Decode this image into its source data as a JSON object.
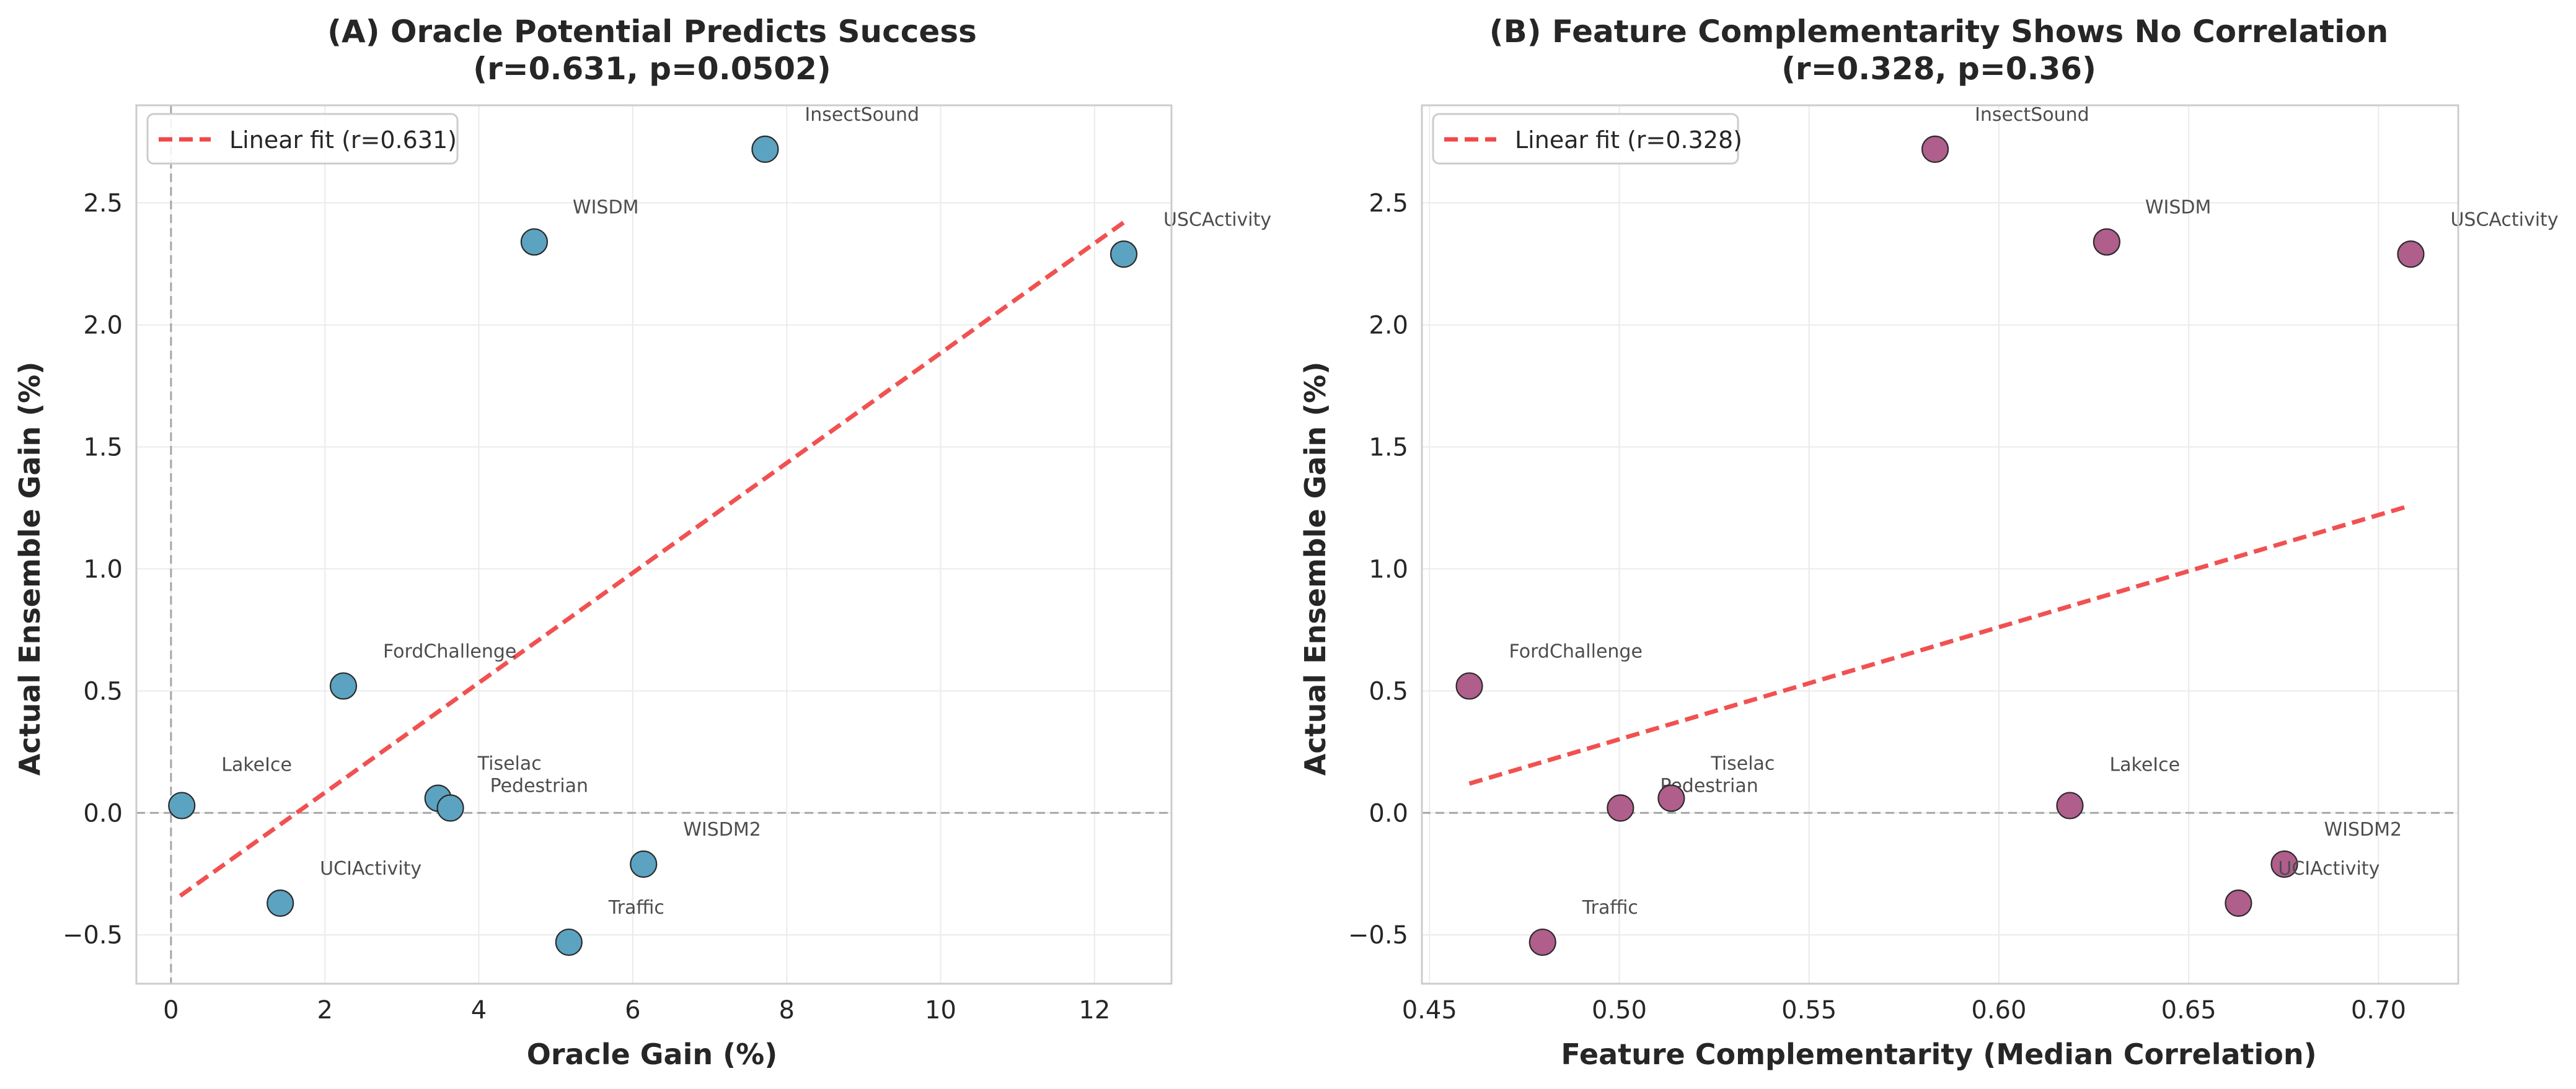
{
  "chart_data": [
    {
      "type": "scatter",
      "title_line1": "(A) Oracle Potential Predicts Success",
      "title_line2": "(r=0.631, p=0.0502)",
      "xlabel": "Oracle Gain (%)",
      "ylabel": "Actual Ensemble Gain (%)",
      "xlim": [
        -0.45,
        13.0
      ],
      "ylim": [
        -0.7,
        2.9
      ],
      "xticks": [
        0,
        2,
        4,
        6,
        8,
        10,
        12
      ],
      "xtick_labels": [
        "0",
        "2",
        "4",
        "6",
        "8",
        "10",
        "12"
      ],
      "yticks": [
        -0.5,
        0.0,
        0.5,
        1.0,
        1.5,
        2.0,
        2.5
      ],
      "ytick_labels": [
        "−0.5",
        "0.0",
        "0.5",
        "1.0",
        "1.5",
        "2.0",
        "2.5"
      ],
      "grid": true,
      "vline_x": 0,
      "hline_y": 0,
      "point_color": "#5ba3c1",
      "fit_color": "#f04848",
      "legend_label": "Linear fit (r=0.631)",
      "legend_position": "top-left",
      "fit_line": {
        "x": [
          0.12,
          12.38
        ],
        "y": [
          -0.34,
          2.42
        ]
      },
      "points": [
        {
          "label": "InsectSound",
          "x": 7.72,
          "y": 2.72
        },
        {
          "label": "WISDM",
          "x": 4.72,
          "y": 2.34
        },
        {
          "label": "USCActivity",
          "x": 12.38,
          "y": 2.29
        },
        {
          "label": "FordChallenge",
          "x": 2.24,
          "y": 0.52
        },
        {
          "label": "LakeIce",
          "x": 0.14,
          "y": 0.03
        },
        {
          "label": "Tiselac",
          "x": 3.47,
          "y": 0.06
        },
        {
          "label": "Pedestrian",
          "x": 3.63,
          "y": 0.02
        },
        {
          "label": "WISDM2",
          "x": 6.14,
          "y": -0.21
        },
        {
          "label": "UCIActivity",
          "x": 1.42,
          "y": -0.37
        },
        {
          "label": "Traffic",
          "x": 5.17,
          "y": -0.53
        }
      ]
    },
    {
      "type": "scatter",
      "title_line1": "(B) Feature Complementarity Shows No Correlation",
      "title_line2": "(r=0.328, p=0.36)",
      "xlabel": "Feature Complementarity (Median Correlation)",
      "ylabel": "Actual Ensemble Gain (%)",
      "xlim": [
        0.448,
        0.721
      ],
      "ylim": [
        -0.7,
        2.9
      ],
      "xticks": [
        0.45,
        0.5,
        0.55,
        0.6,
        0.65,
        0.7
      ],
      "xtick_labels": [
        "0.45",
        "0.50",
        "0.55",
        "0.60",
        "0.65",
        "0.70"
      ],
      "yticks": [
        -0.5,
        0.0,
        0.5,
        1.0,
        1.5,
        2.0,
        2.5
      ],
      "ytick_labels": [
        "−0.5",
        "0.0",
        "0.5",
        "1.0",
        "1.5",
        "2.0",
        "2.5"
      ],
      "grid": true,
      "vline_x": null,
      "hline_y": 0,
      "point_color": "#b05e8c",
      "fit_color": "#f04848",
      "legend_label": "Linear fit (r=0.328)",
      "legend_position": "top-left",
      "fit_line": {
        "x": [
          0.4605,
          0.7085
        ],
        "y": [
          0.12,
          1.26
        ]
      },
      "points": [
        {
          "label": "InsectSound",
          "x": 0.5832,
          "y": 2.72
        },
        {
          "label": "WISDM",
          "x": 0.6284,
          "y": 2.34
        },
        {
          "label": "USCActivity",
          "x": 0.7085,
          "y": 2.29
        },
        {
          "label": "FordChallenge",
          "x": 0.4605,
          "y": 0.52
        },
        {
          "label": "Pedestrian",
          "x": 0.5003,
          "y": 0.02
        },
        {
          "label": "Tiselac",
          "x": 0.5137,
          "y": 0.06
        },
        {
          "label": "LakeIce",
          "x": 0.6187,
          "y": 0.03
        },
        {
          "label": "WISDM2",
          "x": 0.6752,
          "y": -0.21
        },
        {
          "label": "UCIActivity",
          "x": 0.6631,
          "y": -0.37
        },
        {
          "label": "Traffic",
          "x": 0.4798,
          "y": -0.53
        }
      ]
    }
  ]
}
